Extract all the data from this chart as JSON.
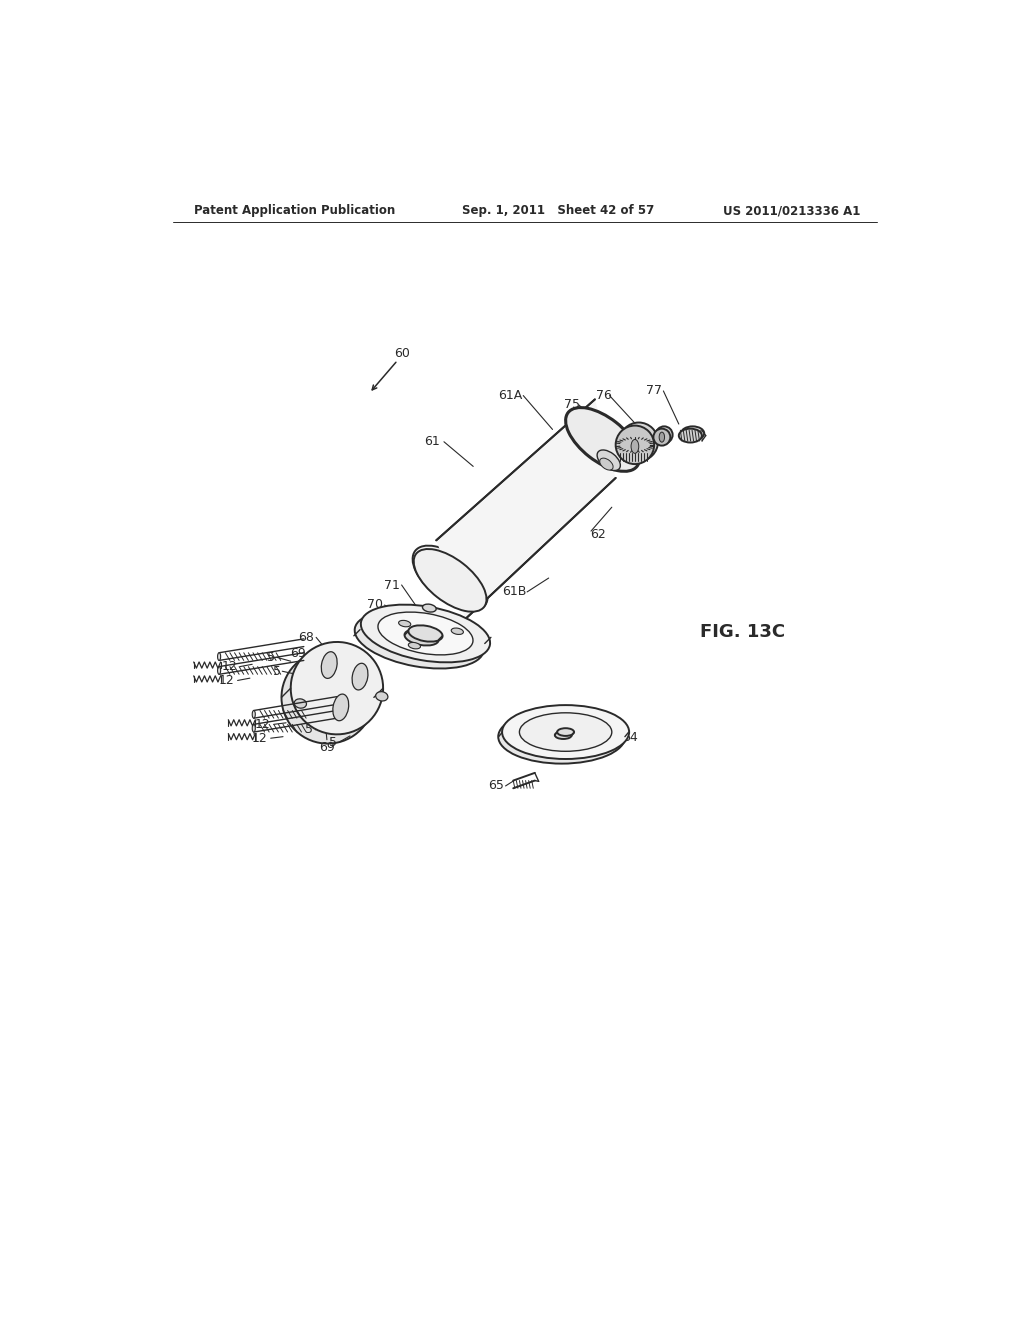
{
  "background_color": "#ffffff",
  "header_left": "Patent Application Publication",
  "header_center": "Sep. 1, 2011   Sheet 42 of 57",
  "header_right": "US 2011/0213336 A1",
  "figure_label": "FIG. 13C"
}
